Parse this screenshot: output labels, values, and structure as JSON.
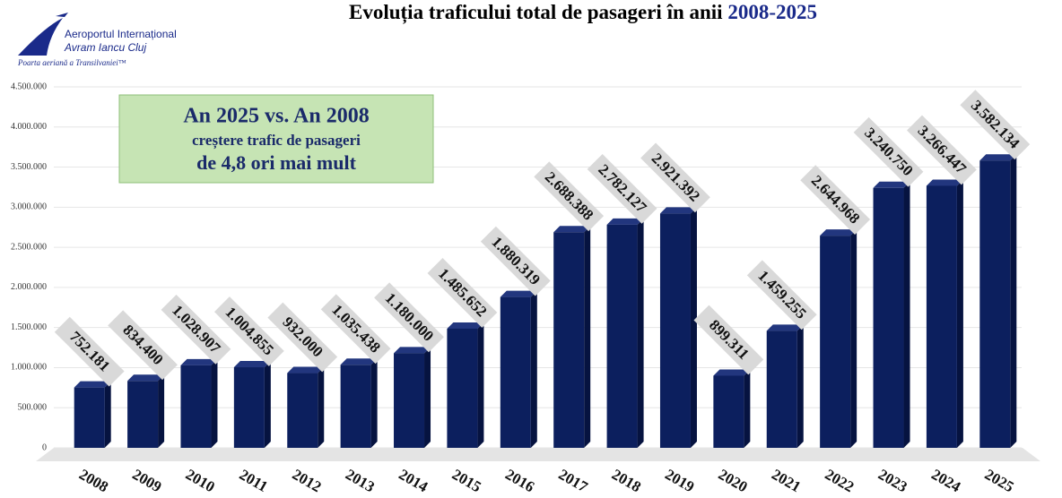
{
  "logo": {
    "line1": "Aeroportul Internațional",
    "line2": "Avram Iancu Cluj",
    "tagline": "Poarta aeriană a Transilvaniei™"
  },
  "chart_data": {
    "type": "bar",
    "title": "Evoluția traficului total de pasageri în anii",
    "title_years": "2008-2025",
    "annotation": {
      "line1": "An 2025 vs. An 2008",
      "line2": "creștere trafic de pasageri",
      "line3": "de 4,8 ori mai mult"
    },
    "categories": [
      "2008",
      "2009",
      "2010",
      "2011",
      "2012",
      "2013",
      "2014",
      "2015",
      "2016",
      "2017",
      "2018",
      "2019",
      "2020",
      "2021",
      "2022",
      "2023",
      "2024",
      "2025"
    ],
    "values": [
      752181,
      834400,
      1028907,
      1004855,
      932000,
      1035438,
      1180000,
      1485652,
      1880319,
      2688388,
      2782127,
      2921392,
      899311,
      1459255,
      2644968,
      3240750,
      3266447,
      3582134
    ],
    "value_labels": [
      "752.181",
      "834.400",
      "1.028.907",
      "1.004.855",
      "932.000",
      "1.035.438",
      "1.180.000",
      "1.485.652",
      "1.880.319",
      "2.688.388",
      "2.782.127",
      "2.921.392",
      "899.311",
      "1.459.255",
      "2.644.968",
      "3.240.750",
      "3.266.447",
      "3.582.134"
    ],
    "color": "#0c1f5e",
    "ylim": [
      0,
      4500000
    ],
    "yticks": [
      0,
      {
        "value": 500000,
        "label": "500.000"
      },
      {
        "value": 1000000,
        "label": "1.000.000"
      },
      {
        "value": 1500000,
        "label": "1.500.000"
      },
      {
        "value": 2000000,
        "label": "2.000.000"
      },
      {
        "value": 2500000,
        "label": "2.500.000"
      },
      {
        "value": 3000000,
        "label": "3.000.000"
      },
      {
        "value": 3500000,
        "label": "3.500.000"
      },
      {
        "value": 4000000,
        "label": "4.000.000"
      },
      {
        "value": 4500000,
        "label": "4.500.000"
      }
    ],
    "grid": true
  }
}
